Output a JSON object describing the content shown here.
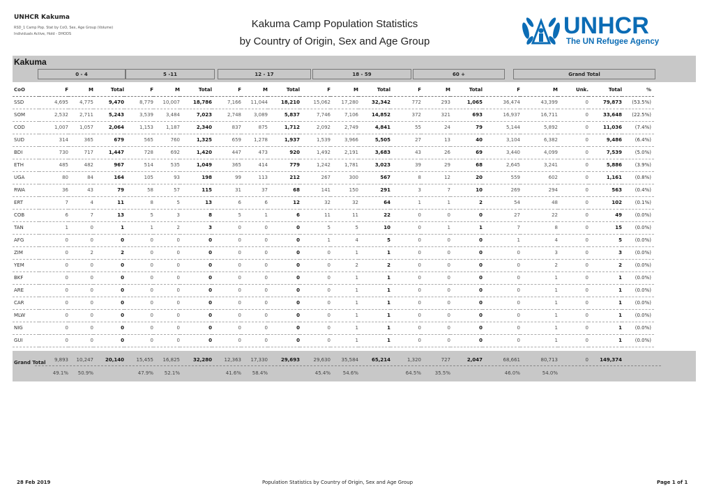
{
  "header": {
    "org": "UNHCR Kakuma",
    "meta_line1": "RSD_1 Camp Pop. Stat by CoO, Sex, Age Group (Volume)",
    "meta_line2": "Individuals Active, Hold - DHODS",
    "title_line1": "Kakuma Camp Population Statistics",
    "title_line2": "by Country of Origin, Sex and Age Group",
    "logo_text": "UNHCR",
    "logo_tagline": "The UN Refugee Agency",
    "logo_color": "#0b6cb5"
  },
  "camp": "Kakuma",
  "groups": [
    "0 - 4",
    "5 -11",
    "12 - 17",
    "18 - 59",
    "60 +",
    "Grand Total"
  ],
  "columns": [
    "CoO",
    "F",
    "M",
    "Total",
    "F",
    "M",
    "Total",
    "F",
    "M",
    "Total",
    "F",
    "M",
    "Total",
    "F",
    "M",
    "Total",
    "F",
    "M",
    "Unk.",
    "Total",
    "%"
  ],
  "rows": [
    [
      "SSD",
      "4,695",
      "4,775",
      "9,470",
      "8,779",
      "10,007",
      "18,786",
      "7,166",
      "11,044",
      "18,210",
      "15,062",
      "17,280",
      "32,342",
      "772",
      "293",
      "1,065",
      "36,474",
      "43,399",
      "0",
      "79,873",
      "(53.5%)"
    ],
    [
      "SOM",
      "2,532",
      "2,711",
      "5,243",
      "3,539",
      "3,484",
      "7,023",
      "2,748",
      "3,089",
      "5,837",
      "7,746",
      "7,106",
      "14,852",
      "372",
      "321",
      "693",
      "16,937",
      "16,711",
      "0",
      "33,648",
      "(22.5%)"
    ],
    [
      "COD",
      "1,007",
      "1,057",
      "2,064",
      "1,153",
      "1,187",
      "2,340",
      "837",
      "875",
      "1,712",
      "2,092",
      "2,749",
      "4,841",
      "55",
      "24",
      "79",
      "5,144",
      "5,892",
      "0",
      "11,036",
      "(7.4%)"
    ],
    [
      "SUD",
      "314",
      "365",
      "679",
      "565",
      "760",
      "1,325",
      "659",
      "1,278",
      "1,937",
      "1,539",
      "3,966",
      "5,505",
      "27",
      "13",
      "40",
      "3,104",
      "6,382",
      "0",
      "9,486",
      "(6.4%)"
    ],
    [
      "BDI",
      "730",
      "717",
      "1,447",
      "728",
      "692",
      "1,420",
      "447",
      "473",
      "920",
      "1,492",
      "2,191",
      "3,683",
      "43",
      "26",
      "69",
      "3,440",
      "4,099",
      "0",
      "7,539",
      "(5.0%)"
    ],
    [
      "ETH",
      "485",
      "482",
      "967",
      "514",
      "535",
      "1,049",
      "365",
      "414",
      "779",
      "1,242",
      "1,781",
      "3,023",
      "39",
      "29",
      "68",
      "2,645",
      "3,241",
      "0",
      "5,886",
      "(3.9%)"
    ],
    [
      "UGA",
      "80",
      "84",
      "164",
      "105",
      "93",
      "198",
      "99",
      "113",
      "212",
      "267",
      "300",
      "567",
      "8",
      "12",
      "20",
      "559",
      "602",
      "0",
      "1,161",
      "(0.8%)"
    ],
    [
      "RWA",
      "36",
      "43",
      "79",
      "58",
      "57",
      "115",
      "31",
      "37",
      "68",
      "141",
      "150",
      "291",
      "3",
      "7",
      "10",
      "269",
      "294",
      "0",
      "563",
      "(0.4%)"
    ],
    [
      "ERT",
      "7",
      "4",
      "11",
      "8",
      "5",
      "13",
      "6",
      "6",
      "12",
      "32",
      "32",
      "64",
      "1",
      "1",
      "2",
      "54",
      "48",
      "0",
      "102",
      "(0.1%)"
    ],
    [
      "COB",
      "6",
      "7",
      "13",
      "5",
      "3",
      "8",
      "5",
      "1",
      "6",
      "11",
      "11",
      "22",
      "0",
      "0",
      "0",
      "27",
      "22",
      "0",
      "49",
      "(0.0%)"
    ],
    [
      "TAN",
      "1",
      "0",
      "1",
      "1",
      "2",
      "3",
      "0",
      "0",
      "0",
      "5",
      "5",
      "10",
      "0",
      "1",
      "1",
      "7",
      "8",
      "0",
      "15",
      "(0.0%)"
    ],
    [
      "AFG",
      "0",
      "0",
      "0",
      "0",
      "0",
      "0",
      "0",
      "0",
      "0",
      "1",
      "4",
      "5",
      "0",
      "0",
      "0",
      "1",
      "4",
      "0",
      "5",
      "(0.0%)"
    ],
    [
      "ZIM",
      "0",
      "2",
      "2",
      "0",
      "0",
      "0",
      "0",
      "0",
      "0",
      "0",
      "1",
      "1",
      "0",
      "0",
      "0",
      "0",
      "3",
      "0",
      "3",
      "(0.0%)"
    ],
    [
      "YEM",
      "0",
      "0",
      "0",
      "0",
      "0",
      "0",
      "0",
      "0",
      "0",
      "0",
      "2",
      "2",
      "0",
      "0",
      "0",
      "0",
      "2",
      "0",
      "2",
      "(0.0%)"
    ],
    [
      "BKF",
      "0",
      "0",
      "0",
      "0",
      "0",
      "0",
      "0",
      "0",
      "0",
      "0",
      "1",
      "1",
      "0",
      "0",
      "0",
      "0",
      "1",
      "0",
      "1",
      "(0.0%)"
    ],
    [
      "ARE",
      "0",
      "0",
      "0",
      "0",
      "0",
      "0",
      "0",
      "0",
      "0",
      "0",
      "1",
      "1",
      "0",
      "0",
      "0",
      "0",
      "1",
      "0",
      "1",
      "(0.0%)"
    ],
    [
      "CAR",
      "0",
      "0",
      "0",
      "0",
      "0",
      "0",
      "0",
      "0",
      "0",
      "0",
      "1",
      "1",
      "0",
      "0",
      "0",
      "0",
      "1",
      "0",
      "1",
      "(0.0%)"
    ],
    [
      "MLW",
      "0",
      "0",
      "0",
      "0",
      "0",
      "0",
      "0",
      "0",
      "0",
      "0",
      "1",
      "1",
      "0",
      "0",
      "0",
      "0",
      "1",
      "0",
      "1",
      "(0.0%)"
    ],
    [
      "NIG",
      "0",
      "0",
      "0",
      "0",
      "0",
      "0",
      "0",
      "0",
      "0",
      "0",
      "1",
      "1",
      "0",
      "0",
      "0",
      "0",
      "1",
      "0",
      "1",
      "(0.0%)"
    ],
    [
      "GUI",
      "0",
      "0",
      "0",
      "0",
      "0",
      "0",
      "0",
      "0",
      "0",
      "0",
      "1",
      "1",
      "0",
      "0",
      "0",
      "0",
      "1",
      "0",
      "1",
      "(0.0%)"
    ]
  ],
  "grand_total": {
    "label": "Grand Total",
    "values": [
      "9,893",
      "10,247",
      "20,140",
      "15,455",
      "16,825",
      "32,280",
      "12,363",
      "17,330",
      "29,693",
      "29,630",
      "35,584",
      "65,214",
      "1,320",
      "727",
      "2,047",
      "68,661",
      "80,713",
      "0",
      "149,374"
    ],
    "percents": [
      "49.1%",
      "50.9%",
      "47.9%",
      "52.1%",
      "41.6%",
      "58.4%",
      "45.4%",
      "54.6%",
      "64.5%",
      "35.5%",
      "46.0%",
      "54.0%"
    ]
  },
  "footer": {
    "date": "28 Feb 2019",
    "center": "Population Statistics by Country of Origin, Sex and Age Group",
    "page": "Page 1 of 1"
  }
}
